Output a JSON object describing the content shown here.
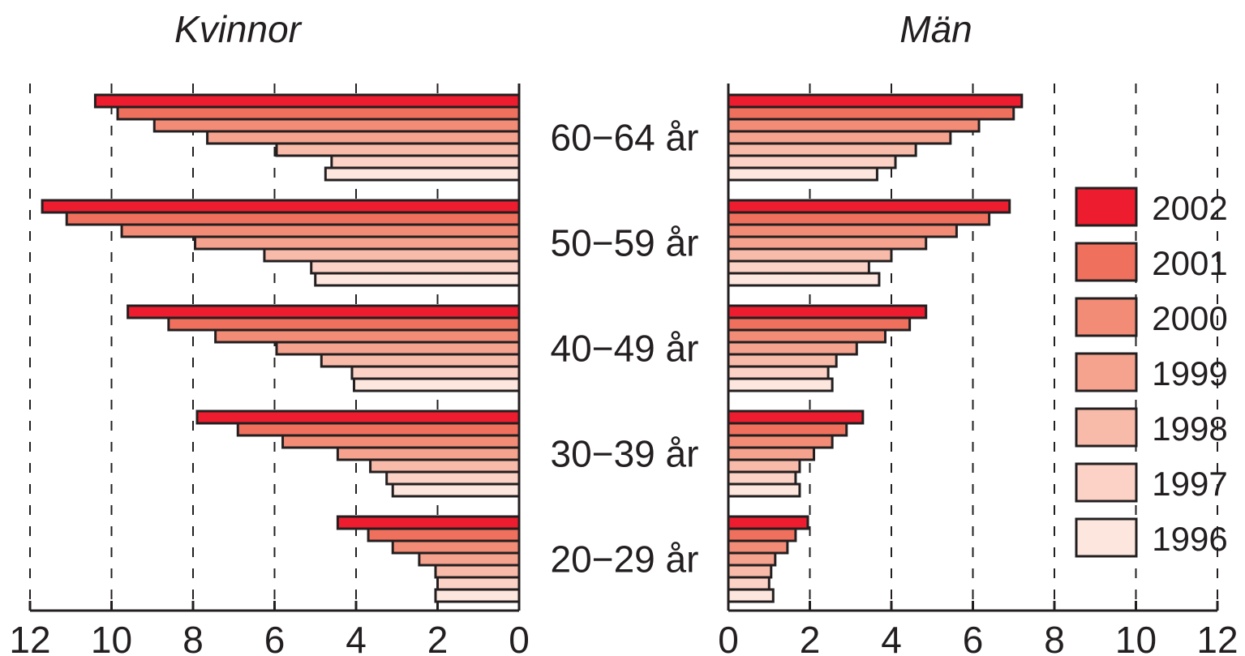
{
  "chart_data": {
    "type": "bar",
    "orientation": "horizontal",
    "layout": "population-pyramid",
    "panels": [
      {
        "title": "Kvinnor",
        "direction": "left",
        "xlim": [
          0,
          12
        ],
        "ticks": [
          "0",
          "2",
          "4",
          "6",
          "8",
          "10",
          "12"
        ],
        "grid": true
      },
      {
        "title": "Män",
        "direction": "right",
        "xlim": [
          0,
          12
        ],
        "ticks": [
          "0",
          "2",
          "4",
          "6",
          "8",
          "10",
          "12"
        ],
        "grid": true
      }
    ],
    "categories": [
      "60–64 år",
      "50–59 år",
      "40–49 år",
      "30–39 år",
      "20–29 år"
    ],
    "category_labels": [
      "60−64 år",
      "50−59 år",
      "40−49 år",
      "30−39 år",
      "20−29 år"
    ],
    "series": [
      {
        "name": "2002",
        "color": "#ed1c2e",
        "kvinnor": [
          10.4,
          11.7,
          9.6,
          7.9,
          4.45
        ],
        "man": [
          7.2,
          6.9,
          4.85,
          3.3,
          1.95
        ]
      },
      {
        "name": "2001",
        "color": "#f0705e",
        "kvinnor": [
          9.85,
          11.1,
          8.6,
          6.9,
          3.7
        ],
        "man": [
          7.0,
          6.4,
          4.45,
          2.9,
          1.65
        ]
      },
      {
        "name": "2000",
        "color": "#f28c76",
        "kvinnor": [
          8.95,
          9.75,
          7.45,
          5.8,
          3.1
        ],
        "man": [
          6.15,
          5.6,
          3.85,
          2.55,
          1.45
        ]
      },
      {
        "name": "1999",
        "color": "#f5a28e",
        "kvinnor": [
          7.65,
          7.95,
          5.95,
          4.45,
          2.45
        ],
        "man": [
          5.45,
          4.85,
          3.15,
          2.1,
          1.15
        ]
      },
      {
        "name": "1998",
        "color": "#f8bba9",
        "kvinnor": [
          5.95,
          6.25,
          4.85,
          3.65,
          2.05
        ],
        "man": [
          4.6,
          4.0,
          2.65,
          1.75,
          1.05
        ]
      },
      {
        "name": "1997",
        "color": "#fbd2c5",
        "kvinnor": [
          4.6,
          5.1,
          4.1,
          3.25,
          2.0
        ],
        "man": [
          4.1,
          3.45,
          2.45,
          1.65,
          1.0
        ]
      },
      {
        "name": "1996",
        "color": "#fde6dd",
        "kvinnor": [
          4.75,
          5.0,
          4.05,
          3.1,
          2.05
        ],
        "man": [
          3.65,
          3.7,
          2.55,
          1.75,
          1.1
        ]
      }
    ],
    "legend": {
      "placement": "right",
      "entries": [
        "2002",
        "2001",
        "2000",
        "1999",
        "1998",
        "1997",
        "1996"
      ]
    }
  }
}
